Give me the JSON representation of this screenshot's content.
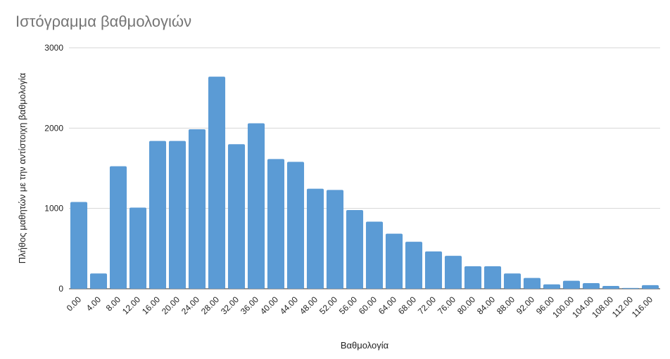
{
  "chart_data": {
    "type": "bar",
    "title": "Ιστόγραμμα βαθμολογιών",
    "xlabel": "Βαθμολογία",
    "ylabel": "Πλήθος μαθητών με την αντίστοιχη βαθμολογία",
    "ylim": [
      0,
      3000
    ],
    "yticks": [
      "0",
      "1000",
      "2000",
      "3000"
    ],
    "grid": true,
    "color": "#5b9bd5",
    "categories": [
      "0.00",
      "4.00",
      "8.00",
      "12.00",
      "16.00",
      "20.00",
      "24.00",
      "28.00",
      "32.00",
      "36.00",
      "40.00",
      "44.00",
      "48.00",
      "52.00",
      "56.00",
      "60.00",
      "64.00",
      "68.00",
      "72.00",
      "76.00",
      "80.00",
      "84.00",
      "88.00",
      "92.00",
      "96.00",
      "100.00",
      "104.00",
      "108.00",
      "112.00",
      "116.00"
    ],
    "values": [
      1080,
      190,
      1525,
      1010,
      1840,
      1840,
      1985,
      2640,
      1800,
      2060,
      1615,
      1580,
      1245,
      1230,
      980,
      835,
      685,
      585,
      465,
      410,
      280,
      280,
      190,
      135,
      55,
      100,
      70,
      35,
      10,
      45
    ]
  }
}
